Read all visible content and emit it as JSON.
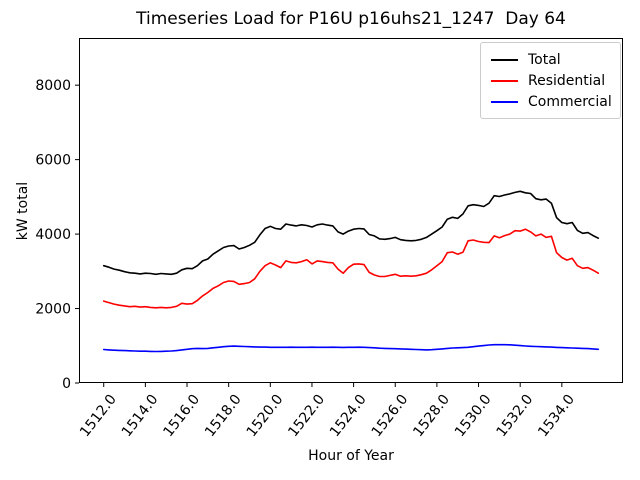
{
  "chart_data": {
    "type": "line",
    "title": "Timeseries Load for P16U p16uhs21_1247  Day 64",
    "xlabel": "Hour of Year",
    "ylabel": "kW total",
    "grid": false,
    "legend_position": "upper right",
    "xlim": [
      1510.8125,
      1536.9375
    ],
    "ylim": [
      0,
      9267
    ],
    "xtick_labels": [
      "1512.0",
      "1514.0",
      "1516.0",
      "1518.0",
      "1520.0",
      "1522.0",
      "1524.0",
      "1526.0",
      "1528.0",
      "1530.0",
      "1532.0",
      "1534.0"
    ],
    "ytick_labels": [
      "0",
      "2000",
      "4000",
      "6000",
      "8000"
    ],
    "x_start": 1512.0,
    "x_step": 0.25,
    "x_count": 96,
    "series": [
      {
        "name": "Total",
        "color": "#000000",
        "values": [
          3150,
          3110,
          3060,
          3030,
          2990,
          2960,
          2950,
          2930,
          2950,
          2940,
          2920,
          2940,
          2930,
          2920,
          2950,
          3040,
          3080,
          3070,
          3150,
          3280,
          3330,
          3460,
          3550,
          3640,
          3680,
          3690,
          3600,
          3640,
          3700,
          3780,
          3980,
          4150,
          4210,
          4150,
          4130,
          4270,
          4240,
          4220,
          4250,
          4230,
          4190,
          4250,
          4270,
          4240,
          4220,
          4060,
          4000,
          4080,
          4130,
          4150,
          4140,
          3990,
          3950,
          3870,
          3860,
          3880,
          3910,
          3850,
          3830,
          3820,
          3830,
          3860,
          3910,
          4000,
          4090,
          4190,
          4400,
          4450,
          4420,
          4540,
          4760,
          4790,
          4770,
          4740,
          4830,
          5030,
          5010,
          5050,
          5080,
          5120,
          5150,
          5110,
          5090,
          4950,
          4920,
          4940,
          4830,
          4440,
          4310,
          4280,
          4310,
          4100,
          4020,
          4040,
          3960,
          3890
        ]
      },
      {
        "name": "Residential",
        "color": "#ff0000",
        "values": [
          2200,
          2160,
          2120,
          2090,
          2070,
          2050,
          2060,
          2040,
          2050,
          2030,
          2020,
          2030,
          2020,
          2030,
          2060,
          2140,
          2120,
          2130,
          2220,
          2340,
          2430,
          2540,
          2610,
          2700,
          2740,
          2730,
          2650,
          2670,
          2700,
          2800,
          3000,
          3150,
          3230,
          3170,
          3100,
          3280,
          3240,
          3230,
          3260,
          3310,
          3200,
          3280,
          3260,
          3240,
          3230,
          3060,
          2950,
          3100,
          3190,
          3200,
          3180,
          2970,
          2900,
          2860,
          2860,
          2890,
          2920,
          2870,
          2880,
          2870,
          2880,
          2910,
          2950,
          3040,
          3150,
          3260,
          3500,
          3520,
          3460,
          3510,
          3820,
          3840,
          3800,
          3780,
          3770,
          3950,
          3900,
          3960,
          4000,
          4090,
          4080,
          4130,
          4060,
          3950,
          4000,
          3910,
          3940,
          3500,
          3370,
          3300,
          3350,
          3150,
          3080,
          3100,
          3030,
          2950
        ]
      },
      {
        "name": "Commercial",
        "color": "#0000ff",
        "values": [
          900,
          890,
          880,
          875,
          870,
          865,
          860,
          855,
          855,
          850,
          845,
          850,
          855,
          860,
          870,
          890,
          905,
          920,
          930,
          925,
          930,
          945,
          960,
          975,
          985,
          990,
          985,
          980,
          975,
          970,
          965,
          965,
          960,
          960,
          958,
          960,
          962,
          960,
          958,
          960,
          962,
          960,
          958,
          960,
          962,
          958,
          955,
          958,
          960,
          962,
          958,
          950,
          945,
          935,
          930,
          925,
          920,
          915,
          910,
          905,
          900,
          895,
          890,
          895,
          905,
          915,
          930,
          940,
          945,
          950,
          960,
          975,
          990,
          1005,
          1020,
          1030,
          1030,
          1028,
          1025,
          1015,
          1005,
          995,
          985,
          980,
          975,
          970,
          965,
          955,
          950,
          945,
          940,
          935,
          930,
          925,
          915,
          905
        ]
      }
    ]
  }
}
